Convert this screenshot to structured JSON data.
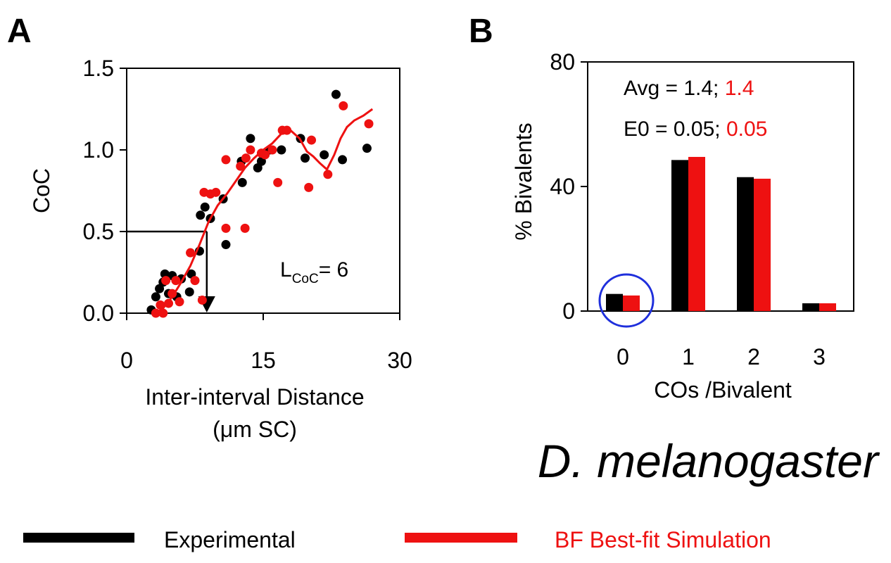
{
  "colors": {
    "experimental": "#000000",
    "simulation": "#ee1111",
    "highlight_circle": "#1f2fdc"
  },
  "panel_a": {
    "letter": "A",
    "annotation": {
      "main": "L",
      "sub": "CoC",
      "rest": "= 6"
    }
  },
  "panel_b": {
    "letter": "B",
    "annotation_avg": {
      "prefix": "Avg = 1.4; ",
      "sim_value": "1.4"
    },
    "annotation_e0": {
      "prefix": "E0 = 0.05; ",
      "sim_value": "0.05"
    }
  },
  "species_label": "D. melanogaster",
  "legend": [
    {
      "label": "Experimental",
      "color": "#000000"
    },
    {
      "label": "BF Best-fit Simulation",
      "color": "#ee1111"
    }
  ],
  "chart_data": [
    {
      "type": "scatter",
      "panel": "A",
      "xlabel": "Inter-interval Distance",
      "xlabel_line2": "(μm SC)",
      "ylabel": "CoC",
      "xlim": [
        0,
        30
      ],
      "ylim": [
        0,
        1.5
      ],
      "x_ticks": [
        0,
        15,
        30
      ],
      "x_tick_labels": [
        "0",
        "15",
        "30"
      ],
      "y_ticks": [
        0,
        0.5,
        1.0,
        1.5
      ],
      "y_tick_labels": [
        "0.0",
        "0.5",
        "1.0",
        "1.5"
      ],
      "series": [
        {
          "name": "Experimental",
          "color": "#000000",
          "points": [
            [
              2.7,
              0.02
            ],
            [
              3.2,
              0.1
            ],
            [
              3.6,
              0.15
            ],
            [
              4.0,
              0.19
            ],
            [
              4.2,
              0.24
            ],
            [
              4.6,
              0.12
            ],
            [
              5.0,
              0.23
            ],
            [
              5.5,
              0.1
            ],
            [
              6.0,
              0.21
            ],
            [
              6.9,
              0.13
            ],
            [
              7.1,
              0.24
            ],
            [
              8.0,
              0.38
            ],
            [
              8.1,
              0.6
            ],
            [
              8.6,
              0.65
            ],
            [
              9.2,
              0.58
            ],
            [
              10.6,
              0.7
            ],
            [
              10.9,
              0.42
            ],
            [
              12.6,
              0.93
            ],
            [
              12.7,
              0.8
            ],
            [
              13.6,
              1.07
            ],
            [
              14.4,
              0.89
            ],
            [
              14.8,
              0.93
            ],
            [
              15.7,
              1.0
            ],
            [
              17.0,
              1.0
            ],
            [
              19.1,
              1.07
            ],
            [
              19.6,
              0.95
            ],
            [
              21.7,
              0.97
            ],
            [
              23.0,
              1.34
            ],
            [
              23.7,
              0.94
            ],
            [
              26.4,
              1.01
            ]
          ]
        },
        {
          "name": "BF Best-fit Simulation",
          "color": "#ee1111",
          "points": [
            [
              3.2,
              0.0
            ],
            [
              3.7,
              0.05
            ],
            [
              4.0,
              0.0
            ],
            [
              4.3,
              0.2
            ],
            [
              4.6,
              0.06
            ],
            [
              5.0,
              0.12
            ],
            [
              5.4,
              0.2
            ],
            [
              5.8,
              0.07
            ],
            [
              7.0,
              0.37
            ],
            [
              7.5,
              0.2
            ],
            [
              8.3,
              0.08
            ],
            [
              8.5,
              0.74
            ],
            [
              9.2,
              0.73
            ],
            [
              9.8,
              0.74
            ],
            [
              10.9,
              0.52
            ],
            [
              10.9,
              0.94
            ],
            [
              12.5,
              0.9
            ],
            [
              13.0,
              0.52
            ],
            [
              13.1,
              0.95
            ],
            [
              13.6,
              1.0
            ],
            [
              14.8,
              0.98
            ],
            [
              15.2,
              0.97
            ],
            [
              16.0,
              1.0
            ],
            [
              16.6,
              0.8
            ],
            [
              17.1,
              1.12
            ],
            [
              17.6,
              1.12
            ],
            [
              20.0,
              0.77
            ],
            [
              20.3,
              1.06
            ],
            [
              22.1,
              0.85
            ],
            [
              23.8,
              1.27
            ],
            [
              26.6,
              1.16
            ]
          ]
        }
      ],
      "fit_curve": {
        "color": "#ee1111",
        "points": [
          [
            3.2,
            0.0
          ],
          [
            4.0,
            0.03
          ],
          [
            5.0,
            0.1
          ],
          [
            6.0,
            0.19
          ],
          [
            7.0,
            0.29
          ],
          [
            8.0,
            0.42
          ],
          [
            9.0,
            0.56
          ],
          [
            10.0,
            0.66
          ],
          [
            11.0,
            0.73
          ],
          [
            12.0,
            0.81
          ],
          [
            13.0,
            0.89
          ],
          [
            14.0,
            0.95
          ],
          [
            15.0,
            1.0
          ],
          [
            16.0,
            1.04
          ],
          [
            17.0,
            1.1
          ],
          [
            18.0,
            1.12
          ],
          [
            19.0,
            1.07
          ],
          [
            19.8,
            0.99
          ],
          [
            20.5,
            0.96
          ],
          [
            21.2,
            0.92
          ],
          [
            22.0,
            0.88
          ],
          [
            22.8,
            0.97
          ],
          [
            23.5,
            1.07
          ],
          [
            24.2,
            1.14
          ],
          [
            25.0,
            1.18
          ],
          [
            26.0,
            1.21
          ],
          [
            27.0,
            1.25
          ]
        ]
      },
      "marker": {
        "x": 8.8,
        "y": 0.5
      }
    },
    {
      "type": "bar",
      "panel": "B",
      "xlabel": "COs /Bivalent",
      "ylabel": "% Bivalents",
      "categories": [
        "0",
        "1",
        "2",
        "3"
      ],
      "ylim": [
        0,
        80
      ],
      "y_ticks": [
        0,
        40,
        80
      ],
      "y_tick_labels": [
        "0",
        "40",
        "80"
      ],
      "series": [
        {
          "name": "Experimental",
          "color": "#000000",
          "values": [
            5.5,
            48.5,
            43.0,
            2.5
          ]
        },
        {
          "name": "BF Best-fit Simulation",
          "color": "#ee1111",
          "values": [
            5.0,
            49.5,
            42.5,
            2.5
          ]
        }
      ],
      "highlight_category": "0"
    }
  ]
}
